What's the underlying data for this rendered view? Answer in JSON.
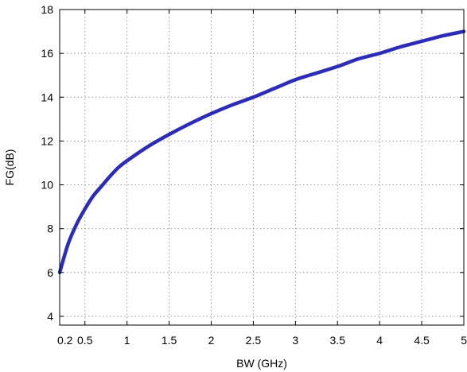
{
  "chart_data": {
    "type": "line",
    "title": "",
    "xlabel": "BW (GHz)",
    "ylabel": "FG(dB)",
    "xlim": [
      0.2,
      5
    ],
    "ylim": [
      3.6,
      18
    ],
    "grid": true,
    "x_ticks": [
      0.2,
      0.5,
      1,
      1.5,
      2,
      2.5,
      3,
      3.5,
      4,
      4.5,
      5
    ],
    "x_tick_labels": [
      "0.2",
      "0.5",
      "1",
      "1.5",
      "2",
      "2.5",
      "3",
      "3.5",
      "4",
      "4.5",
      "5"
    ],
    "y_ticks": [
      4,
      6,
      8,
      10,
      12,
      14,
      16,
      18
    ],
    "y_tick_labels": [
      "4",
      "6",
      "8",
      "10",
      "12",
      "14",
      "16",
      "18"
    ],
    "series": [
      {
        "color": "#2b2db8",
        "x": [
          0.2,
          0.3,
          0.4,
          0.5,
          0.6,
          0.7,
          0.8,
          0.9,
          1.0,
          1.25,
          1.5,
          1.75,
          2.0,
          2.25,
          2.5,
          2.75,
          3.0,
          3.25,
          3.5,
          3.75,
          4.0,
          4.25,
          4.5,
          4.75,
          5.0
        ],
        "y": [
          6.0,
          7.3,
          8.2,
          8.9,
          9.5,
          9.95,
          10.4,
          10.8,
          11.1,
          11.75,
          12.3,
          12.8,
          13.25,
          13.65,
          14.0,
          14.4,
          14.8,
          15.1,
          15.4,
          15.75,
          16.0,
          16.3,
          16.55,
          16.8,
          17.0
        ]
      }
    ]
  }
}
